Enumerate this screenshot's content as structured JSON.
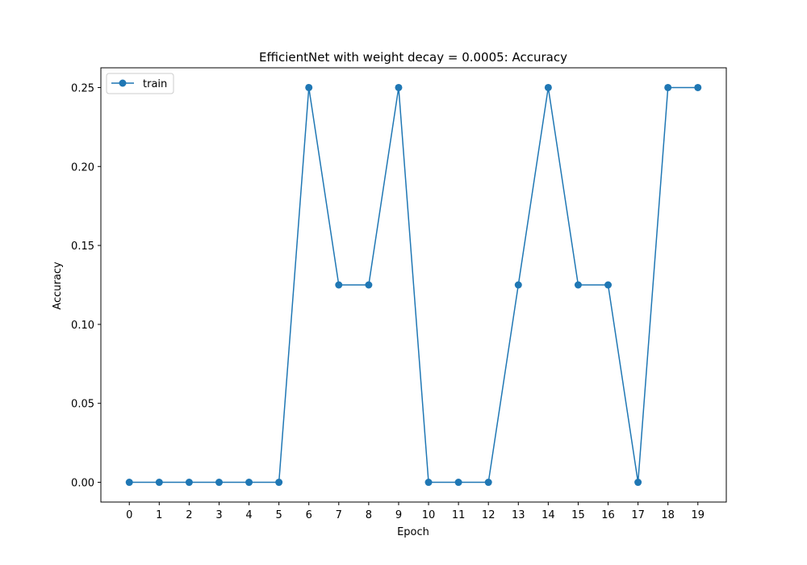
{
  "chart_data": {
    "type": "line",
    "title": "EfficientNet with weight decay = 0.0005: Accuracy",
    "xlabel": "Epoch",
    "ylabel": "Accuracy",
    "x": [
      0,
      1,
      2,
      3,
      4,
      5,
      6,
      7,
      8,
      9,
      10,
      11,
      12,
      13,
      14,
      15,
      16,
      17,
      18,
      19
    ],
    "x_tick_labels": [
      "0",
      "1",
      "2",
      "3",
      "4",
      "5",
      "6",
      "7",
      "8",
      "9",
      "10",
      "11",
      "12",
      "13",
      "14",
      "15",
      "16",
      "17",
      "18",
      "19"
    ],
    "y_tick_labels": [
      "0.00",
      "0.05",
      "0.10",
      "0.15",
      "0.20",
      "0.25"
    ],
    "y_ticks": [
      0.0,
      0.05,
      0.1,
      0.15,
      0.2,
      0.25
    ],
    "xlim": [
      -0.95,
      19.95
    ],
    "ylim": [
      -0.0125,
      0.2625
    ],
    "grid": false,
    "legend_position": "upper left",
    "series": [
      {
        "name": "train",
        "color": "#1f77b4",
        "marker": "circle",
        "values": [
          0,
          0,
          0,
          0,
          0,
          0,
          0.25,
          0.125,
          0.125,
          0.25,
          0,
          0,
          0,
          0.125,
          0.25,
          0.125,
          0.125,
          0,
          0.25,
          0.25
        ]
      }
    ]
  }
}
